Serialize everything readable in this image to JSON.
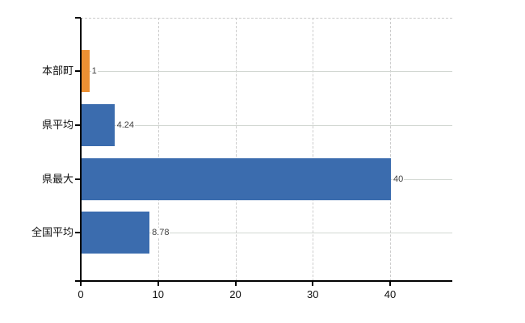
{
  "chart_data": {
    "type": "bar",
    "orientation": "horizontal",
    "title": "",
    "xlabel": "",
    "ylabel": "",
    "categories": [
      "本部町",
      "県平均",
      "県最大",
      "全国平均"
    ],
    "values": [
      1,
      4.24,
      40,
      8.78
    ],
    "value_labels": [
      "1",
      "4.24",
      "40",
      "8.78"
    ],
    "bar_colors": [
      "#EC9033",
      "#3B6CAE",
      "#3B6CAE",
      "#3B6CAE"
    ],
    "xticks": [
      0,
      10,
      20,
      30,
      40
    ],
    "xtick_labels": [
      "0",
      "10",
      "20",
      "30",
      "40"
    ],
    "xlim": [
      0,
      48
    ],
    "grid": true,
    "legend": false,
    "colors": {
      "axis": "#000000",
      "grid_horizontal": "#d2d7d2",
      "grid_vertical": "#cccccc",
      "plot_top_border": "#c9c9c9",
      "category_label": "#111111",
      "value_label": "#3f3f3f",
      "background": "#ffffff"
    }
  }
}
